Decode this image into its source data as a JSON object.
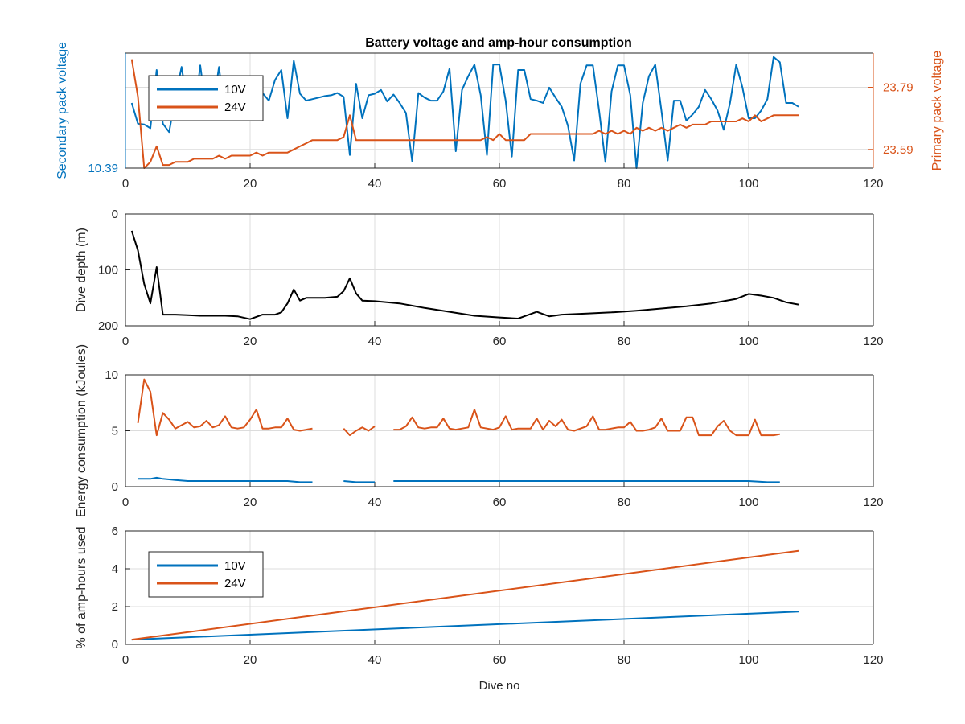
{
  "figure": {
    "title": "Battery voltage and amp-hour consumption"
  },
  "chart_data": [
    {
      "type": "line",
      "title": "Battery voltage and amp-hour consumption",
      "xlabel": "",
      "ylabel": "Secondary pack voltage",
      "ylabel_right": "Primary pack voltage",
      "xlim": [
        0,
        120
      ],
      "xticks": [
        "0",
        "20",
        "40",
        "60",
        "80",
        "100",
        "120"
      ],
      "ylim": [
        10.39,
        10.54
      ],
      "yticks": [
        "10.39"
      ],
      "ylim_right": [
        23.53,
        23.9
      ],
      "yticks_right": [
        "23.59",
        "23.79"
      ],
      "grid": true,
      "legend": {
        "position": "top-left",
        "entries": [
          "10V",
          "24V"
        ]
      },
      "colors": {
        "10V": "#0072bd",
        "24V": "#d95319",
        "left_axis": "#0072bd",
        "right_axis": "#d95319"
      },
      "series": [
        {
          "name": "10V",
          "axis": "left",
          "x": [
            1,
            2,
            3,
            4,
            5,
            6,
            7,
            8,
            9,
            10,
            11,
            12,
            13,
            14,
            15,
            16,
            17,
            18,
            19,
            20,
            21,
            22,
            23,
            24,
            25,
            26,
            27,
            28,
            29,
            30,
            31,
            32,
            33,
            34,
            35,
            36,
            37,
            38,
            39,
            40,
            41,
            42,
            43,
            44,
            45,
            46,
            47,
            48,
            49,
            50,
            51,
            52,
            53,
            54,
            55,
            56,
            57,
            58,
            59,
            60,
            61,
            62,
            63,
            64,
            65,
            66,
            67,
            68,
            69,
            70,
            71,
            72,
            73,
            74,
            75,
            76,
            77,
            78,
            79,
            80,
            81,
            82,
            83,
            84,
            85,
            86,
            87,
            88,
            89,
            90,
            91,
            92,
            93,
            94,
            95,
            96,
            97,
            98,
            99,
            100,
            101,
            102,
            103,
            104,
            105,
            106,
            107,
            108
          ],
          "values": [
            10.475,
            10.448,
            10.447,
            10.442,
            10.518,
            10.448,
            10.437,
            10.482,
            10.522,
            10.47,
            10.457,
            10.524,
            10.462,
            10.468,
            10.522,
            10.454,
            10.467,
            10.47,
            10.472,
            10.468,
            10.48,
            10.488,
            10.478,
            10.505,
            10.518,
            10.455,
            10.53,
            10.487,
            10.478,
            10.48,
            10.482,
            10.484,
            10.485,
            10.488,
            10.483,
            10.407,
            10.5,
            10.455,
            10.485,
            10.487,
            10.492,
            10.477,
            10.486,
            10.475,
            10.462,
            10.399,
            10.488,
            10.482,
            10.478,
            10.478,
            10.49,
            10.52,
            10.412,
            10.492,
            10.51,
            10.525,
            10.485,
            10.407,
            10.525,
            10.525,
            10.478,
            10.405,
            10.518,
            10.518,
            10.48,
            10.478,
            10.475,
            10.495,
            10.482,
            10.47,
            10.445,
            10.4,
            10.5,
            10.524,
            10.524,
            10.465,
            10.398,
            10.49,
            10.524,
            10.524,
            10.485,
            10.39,
            10.475,
            10.51,
            10.525,
            10.465,
            10.4,
            10.478,
            10.478,
            10.452,
            10.46,
            10.47,
            10.492,
            10.48,
            10.465,
            10.44,
            10.475,
            10.525,
            10.495,
            10.455,
            10.455,
            10.465,
            10.48,
            10.535,
            10.528,
            10.475,
            10.475,
            10.47
          ]
        },
        {
          "name": "24V",
          "axis": "right",
          "x": [
            1,
            2,
            3,
            4,
            5,
            6,
            7,
            8,
            9,
            10,
            11,
            12,
            13,
            14,
            15,
            16,
            17,
            18,
            19,
            20,
            21,
            22,
            23,
            24,
            25,
            26,
            27,
            28,
            29,
            30,
            31,
            32,
            33,
            34,
            35,
            36,
            37,
            38,
            39,
            40,
            41,
            42,
            43,
            44,
            45,
            46,
            47,
            48,
            49,
            50,
            51,
            52,
            53,
            54,
            55,
            56,
            57,
            58,
            59,
            60,
            61,
            62,
            63,
            64,
            65,
            66,
            67,
            68,
            69,
            70,
            71,
            72,
            73,
            74,
            75,
            76,
            77,
            78,
            79,
            80,
            81,
            82,
            83,
            84,
            85,
            86,
            87,
            88,
            89,
            90,
            91,
            92,
            93,
            94,
            95,
            96,
            97,
            98,
            99,
            100,
            101,
            102,
            103,
            104,
            105,
            106,
            107,
            108
          ],
          "values": [
            23.88,
            23.76,
            23.53,
            23.55,
            23.6,
            23.54,
            23.54,
            23.55,
            23.55,
            23.55,
            23.56,
            23.56,
            23.56,
            23.56,
            23.57,
            23.56,
            23.57,
            23.57,
            23.57,
            23.57,
            23.58,
            23.57,
            23.58,
            23.58,
            23.58,
            23.58,
            23.59,
            23.6,
            23.61,
            23.62,
            23.62,
            23.62,
            23.62,
            23.62,
            23.63,
            23.7,
            23.62,
            23.62,
            23.62,
            23.62,
            23.62,
            23.62,
            23.62,
            23.62,
            23.62,
            23.62,
            23.62,
            23.62,
            23.62,
            23.62,
            23.62,
            23.62,
            23.62,
            23.62,
            23.62,
            23.62,
            23.62,
            23.63,
            23.62,
            23.64,
            23.62,
            23.62,
            23.62,
            23.62,
            23.64,
            23.64,
            23.64,
            23.64,
            23.64,
            23.64,
            23.64,
            23.64,
            23.64,
            23.64,
            23.64,
            23.65,
            23.64,
            23.65,
            23.64,
            23.65,
            23.64,
            23.66,
            23.65,
            23.66,
            23.65,
            23.66,
            23.65,
            23.66,
            23.67,
            23.66,
            23.67,
            23.67,
            23.67,
            23.68,
            23.68,
            23.68,
            23.68,
            23.68,
            23.69,
            23.68,
            23.7,
            23.68,
            23.69,
            23.7,
            23.7,
            23.7,
            23.7,
            23.7
          ]
        }
      ]
    },
    {
      "type": "line",
      "title": "",
      "xlabel": "",
      "ylabel": "Dive depth (m)",
      "xlim": [
        0,
        120
      ],
      "xticks": [
        "0",
        "20",
        "40",
        "60",
        "80",
        "100",
        "120"
      ],
      "ylim": [
        0,
        200
      ],
      "y_reversed": true,
      "yticks": [
        "0",
        "100",
        "200"
      ],
      "grid": true,
      "colors": {
        "depth": "#000000"
      },
      "series": [
        {
          "x": [
            1,
            2,
            3,
            4,
            5,
            6,
            8,
            10,
            12,
            14,
            16,
            18,
            20,
            22,
            24,
            25,
            26,
            27,
            28,
            29,
            30,
            32,
            34,
            35,
            36,
            37,
            38,
            40,
            44,
            48,
            52,
            56,
            60,
            63,
            64,
            66,
            68,
            70,
            74,
            78,
            82,
            86,
            90,
            94,
            98,
            100,
            102,
            104,
            106,
            108
          ],
          "values": [
            30,
            65,
            125,
            160,
            95,
            180,
            180,
            181,
            182,
            182,
            182,
            183,
            188,
            180,
            180,
            176,
            160,
            135,
            155,
            150,
            150,
            150,
            148,
            138,
            115,
            142,
            155,
            156,
            160,
            168,
            175,
            182,
            185,
            187,
            183,
            175,
            183,
            180,
            178,
            176,
            173,
            169,
            165,
            160,
            152,
            143,
            146,
            150,
            158,
            162
          ]
        }
      ]
    },
    {
      "type": "line",
      "title": "",
      "xlabel": "",
      "ylabel": "Energy consumption (kJoules)",
      "xlim": [
        0,
        120
      ],
      "xticks": [
        "0",
        "20",
        "40",
        "60",
        "80",
        "100",
        "120"
      ],
      "ylim": [
        0,
        10
      ],
      "yticks": [
        "0",
        "5",
        "10"
      ],
      "grid": true,
      "colors": {
        "10V": "#0072bd",
        "24V": "#d95319"
      },
      "series": [
        {
          "name": "10V",
          "segments": [
            {
              "x": [
                2,
                4,
                5,
                6,
                8,
                10,
                12,
                14,
                16,
                18,
                20,
                22,
                24,
                26,
                28,
                30
              ],
              "values": [
                0.7,
                0.7,
                0.8,
                0.7,
                0.6,
                0.5,
                0.5,
                0.5,
                0.5,
                0.5,
                0.5,
                0.5,
                0.5,
                0.5,
                0.4,
                0.4
              ]
            },
            {
              "x": [
                35,
                37,
                40
              ],
              "values": [
                0.5,
                0.4,
                0.4
              ]
            },
            {
              "x": [
                43,
                50,
                60,
                70,
                80,
                90,
                100,
                103,
                105
              ],
              "values": [
                0.5,
                0.5,
                0.5,
                0.5,
                0.5,
                0.5,
                0.5,
                0.4,
                0.4
              ]
            }
          ]
        },
        {
          "name": "24V",
          "segments": [
            {
              "x": [
                2,
                3,
                4,
                5,
                6,
                7,
                8,
                9,
                10,
                11,
                12,
                13,
                14,
                15,
                16,
                17,
                18,
                19,
                20,
                21,
                22,
                23,
                24,
                25,
                26,
                27,
                28,
                29,
                30
              ],
              "values": [
                5.7,
                9.6,
                8.5,
                4.6,
                6.6,
                6.0,
                5.2,
                5.5,
                5.8,
                5.3,
                5.4,
                5.9,
                5.3,
                5.5,
                6.3,
                5.3,
                5.2,
                5.3,
                6.0,
                6.9,
                5.2,
                5.2,
                5.3,
                5.3,
                6.1,
                5.1,
                5.0,
                5.1,
                5.2
              ]
            },
            {
              "x": [
                35,
                36,
                37,
                38,
                39,
                40
              ],
              "values": [
                5.2,
                4.6,
                5.0,
                5.3,
                5.0,
                5.4
              ]
            },
            {
              "x": [
                43,
                44,
                45,
                46,
                47,
                48,
                49,
                50,
                51,
                52,
                53,
                54,
                55,
                56,
                57,
                58,
                59,
                60,
                61,
                62,
                63,
                64,
                65,
                66,
                67,
                68,
                69,
                70,
                71,
                72,
                73,
                74,
                75,
                76,
                77,
                78,
                79,
                80,
                81,
                82,
                83,
                84,
                85,
                86,
                87,
                88,
                89,
                90,
                91,
                92,
                93,
                94,
                95,
                96,
                97,
                98,
                99,
                100,
                101,
                102,
                103,
                104,
                105
              ],
              "values": [
                5.1,
                5.1,
                5.4,
                6.2,
                5.3,
                5.2,
                5.3,
                5.3,
                6.1,
                5.2,
                5.1,
                5.2,
                5.3,
                6.9,
                5.3,
                5.2,
                5.1,
                5.3,
                6.3,
                5.1,
                5.2,
                5.2,
                5.2,
                6.1,
                5.1,
                5.9,
                5.4,
                6.0,
                5.1,
                5.0,
                5.2,
                5.4,
                6.3,
                5.1,
                5.1,
                5.2,
                5.3,
                5.3,
                5.8,
                5.0,
                5.0,
                5.1,
                5.3,
                6.1,
                5.0,
                5.0,
                5.0,
                6.2,
                6.2,
                4.6,
                4.6,
                4.6,
                5.4,
                5.9,
                5.0,
                4.6,
                4.6,
                4.6,
                6.0,
                4.6,
                4.6,
                4.6,
                4.7
              ]
            }
          ]
        }
      ]
    },
    {
      "type": "line",
      "title": "",
      "xlabel": "Dive no",
      "ylabel": "% of amp-hours used",
      "xlim": [
        0,
        120
      ],
      "xticks": [
        "0",
        "20",
        "40",
        "60",
        "80",
        "100",
        "120"
      ],
      "ylim": [
        0,
        6
      ],
      "yticks": [
        "0",
        "2",
        "4",
        "6"
      ],
      "grid": true,
      "legend": {
        "position": "top-left",
        "entries": [
          "10V",
          "24V"
        ]
      },
      "colors": {
        "10V": "#0072bd",
        "24V": "#d95319"
      },
      "series": [
        {
          "name": "10V",
          "x": [
            1,
            108
          ],
          "values": [
            0.25,
            1.73
          ]
        },
        {
          "name": "24V",
          "x": [
            1,
            108
          ],
          "values": [
            0.25,
            4.95
          ]
        }
      ]
    }
  ]
}
